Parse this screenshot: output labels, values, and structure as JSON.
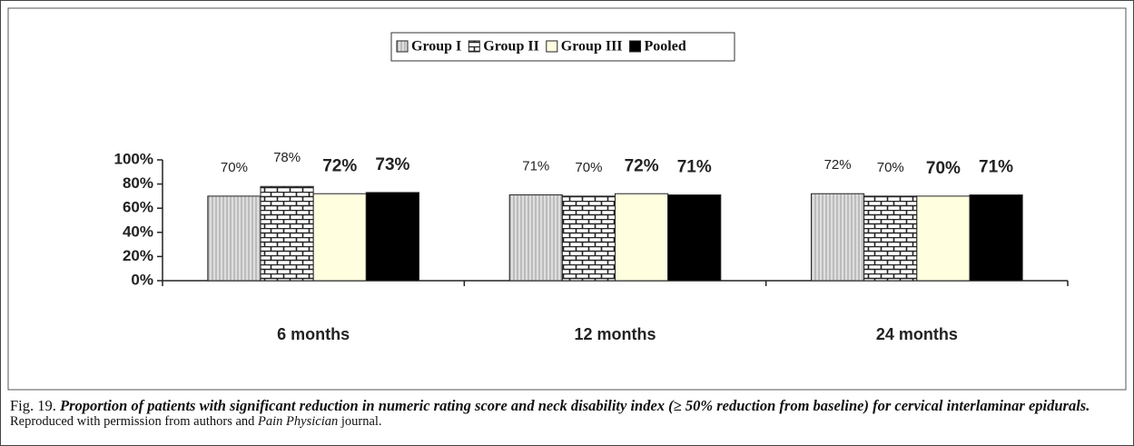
{
  "chart_data": {
    "type": "bar",
    "categories": [
      "6 months",
      "12 months",
      "24 months"
    ],
    "series": [
      {
        "name": "Group I",
        "color": "#d9d9d9",
        "pattern": "vertical-lines",
        "values": [
          70,
          71,
          72
        ],
        "value_labels": [
          "70%",
          "71%",
          "72%"
        ]
      },
      {
        "name": "Group II",
        "color": "#ffffff",
        "pattern": "brick",
        "values": [
          78,
          70,
          70
        ],
        "value_labels": [
          "78%",
          "70%",
          "70%"
        ]
      },
      {
        "name": "Group III",
        "color": "#ffffe0",
        "values": [
          72,
          72,
          70
        ],
        "value_labels": [
          "72%",
          "72%",
          "70%"
        ]
      },
      {
        "name": "Pooled",
        "color": "#000000",
        "values": [
          73,
          71,
          71
        ],
        "value_labels": [
          "73%",
          "71%",
          "71%"
        ]
      }
    ],
    "ylim": [
      0,
      100
    ],
    "yticks": [
      {
        "value": 0,
        "label": "0%"
      },
      {
        "value": 20,
        "label": "20%"
      },
      {
        "value": 40,
        "label": "40%"
      },
      {
        "value": 60,
        "label": "60%"
      },
      {
        "value": 80,
        "label": "80%"
      },
      {
        "value": 100,
        "label": "100%"
      }
    ],
    "grid": false,
    "legend": "top"
  },
  "caption": {
    "figure_label": "Fig. 19.",
    "text": "Proportion of patients with significant reduction in numeric rating score and neck disability index (≥ 50% reduction from baseline) for cervical interlaminar epidurals.",
    "credit_start": "Reproduced with permission from authors and ",
    "credit_journal": "Pain Physician",
    "credit_end": " journal."
  }
}
